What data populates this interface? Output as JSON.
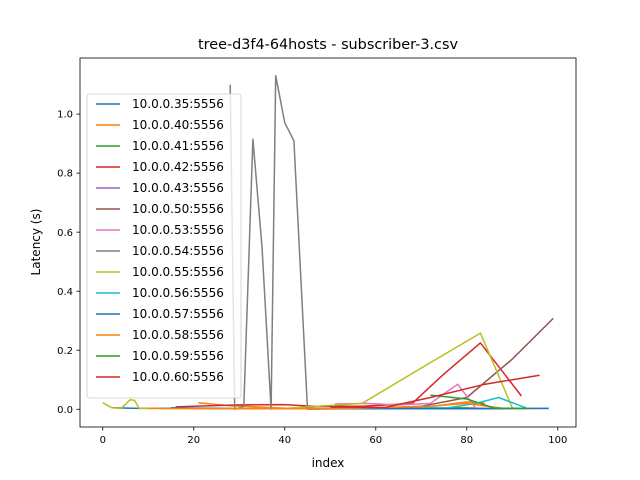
{
  "chart_data": {
    "type": "line",
    "title": "tree-d3f4-64hosts - subscriber-3.csv",
    "xlabel": "index",
    "ylabel": "Latency (s)",
    "xlim": [
      -5,
      104
    ],
    "ylim": [
      -0.06,
      1.19
    ],
    "x_ticks": [
      "0",
      "20",
      "40",
      "60",
      "80",
      "100"
    ],
    "y_ticks": [
      "0.0",
      "0.2",
      "0.4",
      "0.6",
      "0.8",
      "1.0"
    ],
    "grid": false,
    "legend_position": "upper-left",
    "series": [
      {
        "name": "10.0.0.35:5556",
        "color": "#1f77b4",
        "x": [
          2,
          8,
          15,
          22,
          30,
          45
        ],
        "y": [
          0.005,
          0.003,
          0.004,
          0.003,
          0.003,
          0.004
        ]
      },
      {
        "name": "10.0.0.40:5556",
        "color": "#ff7f0e",
        "x": [
          21,
          28,
          40,
          50,
          62,
          70,
          80,
          84
        ],
        "y": [
          0.022,
          0.012,
          0.004,
          0.003,
          0.003,
          0.005,
          0.025,
          0.02
        ]
      },
      {
        "name": "10.0.0.41:5556",
        "color": "#2ca02c",
        "x": [
          58,
          68,
          78,
          86
        ],
        "y": [
          0.003,
          0.003,
          0.005,
          0.003
        ]
      },
      {
        "name": "10.0.0.42:5556",
        "color": "#d62728",
        "x": [
          16,
          20,
          30,
          40,
          46,
          57,
          68,
          75,
          83,
          92
        ],
        "y": [
          0.008,
          0.01,
          0.015,
          0.016,
          0.01,
          0.01,
          0.02,
          0.12,
          0.225,
          0.045
        ]
      },
      {
        "name": "10.0.0.43:5556",
        "color": "#9467bd",
        "x": [
          60,
          72,
          88
        ],
        "y": [
          0.002,
          0.003,
          0.002
        ]
      },
      {
        "name": "10.0.0.50:5556",
        "color": "#8c564b",
        "x": [
          40,
          52,
          60,
          70,
          80,
          90,
          99
        ],
        "y": [
          0.003,
          0.003,
          0.003,
          0.01,
          0.04,
          0.17,
          0.308
        ]
      },
      {
        "name": "10.0.0.53:5556",
        "color": "#e377c2",
        "x": [
          51,
          58,
          65,
          72,
          78,
          82,
          91,
          98
        ],
        "y": [
          0.018,
          0.02,
          0.015,
          0.02,
          0.085,
          0.003,
          0.003,
          0.003
        ]
      },
      {
        "name": "10.0.0.54:5556",
        "color": "#7f7f7f",
        "x": [
          28,
          29,
          31,
          33,
          35,
          37,
          38,
          40,
          42,
          44,
          45,
          60
        ],
        "y": [
          1.1,
          0.0,
          0.01,
          0.915,
          0.55,
          0.0,
          1.13,
          0.97,
          0.91,
          0.3,
          0.0,
          0.003
        ]
      },
      {
        "name": "10.0.0.55:5556",
        "color": "#bcbd22",
        "x": [
          0,
          2,
          4,
          6,
          7,
          8,
          12,
          20,
          40,
          57,
          70,
          83,
          90
        ],
        "y": [
          0.022,
          0.005,
          0.003,
          0.032,
          0.03,
          0.003,
          0.003,
          0.003,
          0.003,
          0.02,
          0.14,
          0.258,
          0.005
        ]
      },
      {
        "name": "10.0.0.56:5556",
        "color": "#17becf",
        "x": [
          70,
          76,
          82,
          87,
          93
        ],
        "y": [
          0.005,
          0.005,
          0.02,
          0.04,
          0.005
        ]
      },
      {
        "name": "10.0.0.57:5556",
        "color": "#1f77b4",
        "x": [
          15,
          30,
          55,
          70,
          85,
          98
        ],
        "y": [
          0.005,
          0.002,
          0.002,
          0.002,
          0.002,
          0.003
        ]
      },
      {
        "name": "10.0.0.58:5556",
        "color": "#ff7f0e",
        "x": [
          10,
          25,
          50,
          72,
          80,
          88
        ],
        "y": [
          0.003,
          0.002,
          0.002,
          0.01,
          0.02,
          0.003
        ]
      },
      {
        "name": "10.0.0.59:5556",
        "color": "#2ca02c",
        "x": [
          72,
          80,
          86,
          94
        ],
        "y": [
          0.048,
          0.035,
          0.004,
          0.003
        ]
      },
      {
        "name": "10.0.0.60:5556",
        "color": "#d62728",
        "x": [
          50,
          62,
          72,
          84,
          96
        ],
        "y": [
          0.008,
          0.006,
          0.04,
          0.085,
          0.115
        ]
      }
    ]
  }
}
